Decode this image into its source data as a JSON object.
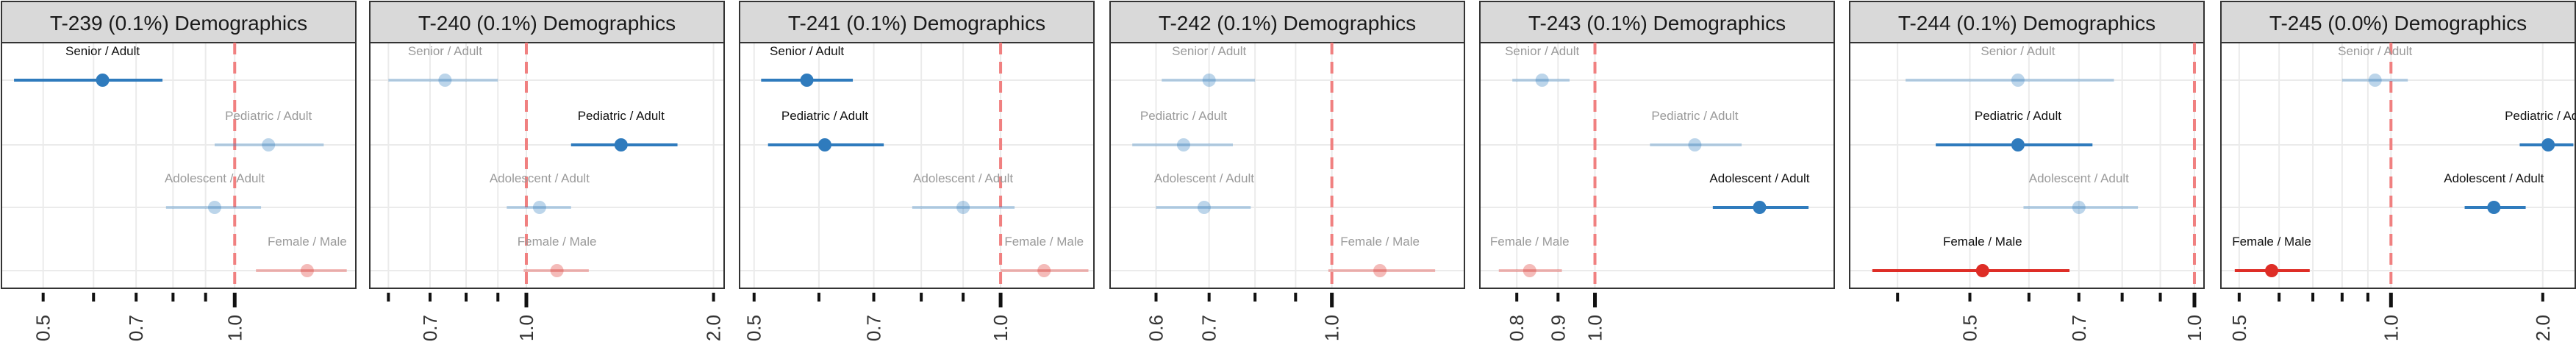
{
  "colors": {
    "blue": "#2f7bbd",
    "red": "#de2d26",
    "ref_line": "#f08080",
    "strip_bg": "#d9d9d9",
    "grid": "#ebebeb"
  },
  "chart_data": [
    {
      "type": "forest",
      "title": "T-239 (0.1%) Demographics",
      "scale": "log",
      "xlim": [
        0.43,
        1.55
      ],
      "ticks": [
        0.5,
        0.6,
        0.7,
        0.8,
        0.9,
        1.0
      ],
      "tick_labels": [
        "0.5",
        "",
        "0.7",
        "",
        "",
        "1.0"
      ],
      "rows": [
        {
          "label": "Senior / Adult",
          "est": 0.62,
          "lo": 0.45,
          "hi": 0.77,
          "color": "blue",
          "highlight": true
        },
        {
          "label": "Pediatric / Adult",
          "est": 1.13,
          "lo": 0.93,
          "hi": 1.38,
          "color": "blue",
          "highlight": false
        },
        {
          "label": "Adolescent / Adult",
          "est": 0.93,
          "lo": 0.78,
          "hi": 1.1,
          "color": "blue",
          "highlight": false
        },
        {
          "label": "Female / Male",
          "est": 1.3,
          "lo": 1.08,
          "hi": 1.5,
          "color": "red",
          "highlight": false
        }
      ]
    },
    {
      "type": "forest",
      "title": "T-240 (0.1%) Demographics",
      "scale": "log",
      "xlim": [
        0.56,
        2.08
      ],
      "ticks": [
        0.6,
        0.7,
        0.8,
        0.9,
        1.0,
        2.0
      ],
      "tick_labels": [
        "",
        "0.7",
        "",
        "",
        "1.0",
        "2.0"
      ],
      "rows": [
        {
          "label": "Senior / Adult",
          "est": 0.74,
          "lo": 0.6,
          "hi": 0.9,
          "color": "blue",
          "highlight": false
        },
        {
          "label": "Pediatric / Adult",
          "est": 1.42,
          "lo": 1.18,
          "hi": 1.75,
          "color": "blue",
          "highlight": true
        },
        {
          "label": "Adolescent / Adult",
          "est": 1.05,
          "lo": 0.93,
          "hi": 1.18,
          "color": "blue",
          "highlight": false
        },
        {
          "label": "Female / Male",
          "est": 1.12,
          "lo": 0.99,
          "hi": 1.26,
          "color": "red",
          "highlight": false
        }
      ]
    },
    {
      "type": "forest",
      "title": "T-241 (0.1%) Demographics",
      "scale": "log",
      "xlim": [
        0.48,
        1.3
      ],
      "ticks": [
        0.5,
        0.6,
        0.7,
        0.8,
        0.9,
        1.0
      ],
      "tick_labels": [
        "0.5",
        "",
        "0.7",
        "",
        "",
        "1.0"
      ],
      "rows": [
        {
          "label": "Senior / Adult",
          "est": 0.58,
          "lo": 0.51,
          "hi": 0.66,
          "color": "blue",
          "highlight": true
        },
        {
          "label": "Pediatric / Adult",
          "est": 0.61,
          "lo": 0.52,
          "hi": 0.72,
          "color": "blue",
          "highlight": true
        },
        {
          "label": "Adolescent / Adult",
          "est": 0.9,
          "lo": 0.78,
          "hi": 1.04,
          "color": "blue",
          "highlight": false
        },
        {
          "label": "Female / Male",
          "est": 1.13,
          "lo": 1.0,
          "hi": 1.28,
          "color": "red",
          "highlight": false
        }
      ]
    },
    {
      "type": "forest",
      "title": "T-242 (0.1%) Demographics",
      "scale": "log",
      "xlim": [
        0.525,
        1.47
      ],
      "ticks": [
        0.6,
        0.7,
        0.8,
        0.9,
        1.0
      ],
      "tick_labels": [
        "0.6",
        "0.7",
        "",
        "",
        "1.0"
      ],
      "rows": [
        {
          "label": "Senior / Adult",
          "est": 0.7,
          "lo": 0.61,
          "hi": 0.8,
          "color": "blue",
          "highlight": false
        },
        {
          "label": "Pediatric / Adult",
          "est": 0.65,
          "lo": 0.56,
          "hi": 0.75,
          "color": "blue",
          "highlight": false
        },
        {
          "label": "Adolescent / Adult",
          "est": 0.69,
          "lo": 0.6,
          "hi": 0.79,
          "color": "blue",
          "highlight": false
        },
        {
          "label": "Female / Male",
          "est": 1.15,
          "lo": 0.99,
          "hi": 1.35,
          "color": "red",
          "highlight": false
        }
      ]
    },
    {
      "type": "forest",
      "title": "T-243 (0.1%) Demographics",
      "scale": "log",
      "xlim": [
        0.72,
        1.98
      ],
      "ticks": [
        0.8,
        0.9,
        1.0
      ],
      "tick_labels": [
        "0.8",
        "0.9",
        "1.0"
      ],
      "rows": [
        {
          "label": "Senior / Adult",
          "est": 0.86,
          "lo": 0.79,
          "hi": 0.93,
          "color": "blue",
          "highlight": false
        },
        {
          "label": "Pediatric / Adult",
          "est": 1.33,
          "lo": 1.17,
          "hi": 1.52,
          "color": "blue",
          "highlight": false
        },
        {
          "label": "Adolescent / Adult",
          "est": 1.6,
          "lo": 1.4,
          "hi": 1.84,
          "color": "blue",
          "highlight": true
        },
        {
          "label": "Female / Male",
          "est": 0.83,
          "lo": 0.76,
          "hi": 0.91,
          "color": "red",
          "highlight": false
        }
      ]
    },
    {
      "type": "forest",
      "title": "T-244 (0.1%) Demographics",
      "scale": "log",
      "xlim": [
        0.345,
        1.03
      ],
      "ticks": [
        0.4,
        0.5,
        0.6,
        0.7,
        0.8,
        0.9,
        1.0
      ],
      "tick_labels": [
        "",
        "0.5",
        "",
        "0.7",
        "",
        "",
        "1.0"
      ],
      "rows": [
        {
          "label": "Senior / Adult",
          "est": 0.58,
          "lo": 0.41,
          "hi": 0.78,
          "color": "blue",
          "highlight": false
        },
        {
          "label": "Pediatric / Adult",
          "est": 0.58,
          "lo": 0.45,
          "hi": 0.73,
          "color": "blue",
          "highlight": true
        },
        {
          "label": "Adolescent / Adult",
          "est": 0.7,
          "lo": 0.59,
          "hi": 0.84,
          "color": "blue",
          "highlight": false
        },
        {
          "label": "Female / Male",
          "est": 0.52,
          "lo": 0.37,
          "hi": 0.68,
          "color": "red",
          "highlight": true
        }
      ]
    },
    {
      "type": "forest",
      "title": "T-245 (0.0%) Demographics",
      "scale": "log",
      "xlim": [
        0.46,
        2.32
      ],
      "ticks": [
        0.5,
        0.6,
        0.7,
        0.8,
        0.9,
        1.0,
        2.0
      ],
      "tick_labels": [
        "0.5",
        "",
        "",
        "",
        "",
        "1.0",
        "2.0"
      ],
      "rows": [
        {
          "label": "Senior / Adult",
          "est": 0.93,
          "lo": 0.8,
          "hi": 1.08,
          "color": "blue",
          "highlight": false
        },
        {
          "label": "Pediatric / Adult",
          "est": 2.05,
          "lo": 1.8,
          "hi": 2.3,
          "color": "blue",
          "highlight": true
        },
        {
          "label": "Adolescent / Adult",
          "est": 1.6,
          "lo": 1.4,
          "hi": 1.85,
          "color": "blue",
          "highlight": true
        },
        {
          "label": "Female / Male",
          "est": 0.58,
          "lo": 0.49,
          "hi": 0.69,
          "color": "red",
          "highlight": true
        }
      ]
    }
  ]
}
